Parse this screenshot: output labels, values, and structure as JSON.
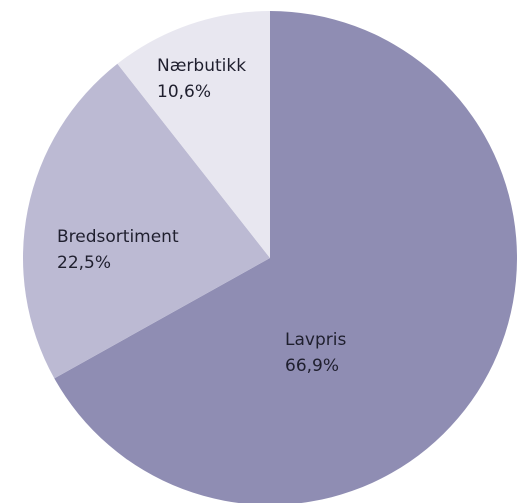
{
  "chart_data": {
    "type": "pie",
    "categories": [
      "Lavpris",
      "Bredsortiment",
      "Nærbutikk"
    ],
    "values": [
      66.9,
      22.5,
      10.6
    ],
    "value_labels": [
      "66,9%",
      "22,5%",
      "10,6%"
    ],
    "colors": [
      "#8f8db3",
      "#bcbad3",
      "#e8e7f0"
    ]
  }
}
